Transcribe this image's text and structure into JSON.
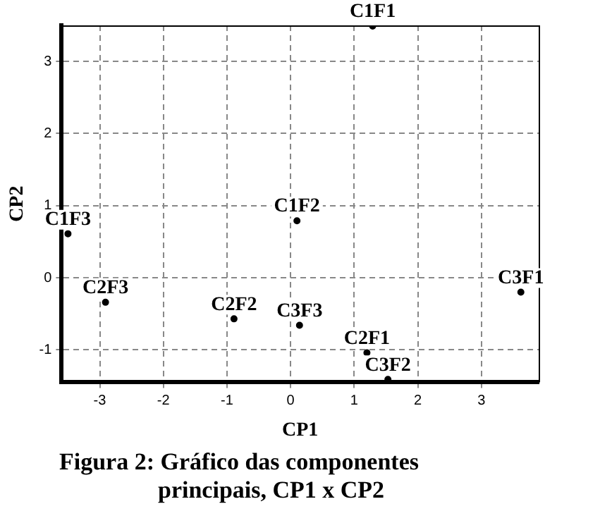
{
  "chart_data": {
    "type": "scatter",
    "title": "Figura 2: Gráfico das componentes principais, CP1 x CP2",
    "xlabel": "CP1",
    "ylabel": "CP2",
    "x": [
      1.29,
      0.1,
      -3.5,
      -2.91,
      -0.89,
      0.14,
      1.2,
      1.53,
      3.62
    ],
    "series": [
      {
        "color": "#000000",
        "values": [
          3.49,
          0.79,
          0.61,
          -0.34,
          -0.57,
          -0.66,
          -1.04,
          -1.41,
          -0.2
        ],
        "value_labels": [
          "C1F1",
          "C1F2",
          "C1F3",
          "C2F3",
          "C2F2",
          "C3F3",
          "C2F1",
          "C3F2",
          "C3F1"
        ]
      }
    ],
    "xlim": [
      -3.6,
      3.9
    ],
    "ylim": [
      -1.45,
      3.5
    ],
    "xticks": [
      -3,
      -2,
      -1,
      0,
      1,
      2,
      3
    ],
    "yticks": [
      -1,
      0,
      1,
      2,
      3
    ],
    "grid": true,
    "legend": false,
    "marker": "circle"
  }
}
